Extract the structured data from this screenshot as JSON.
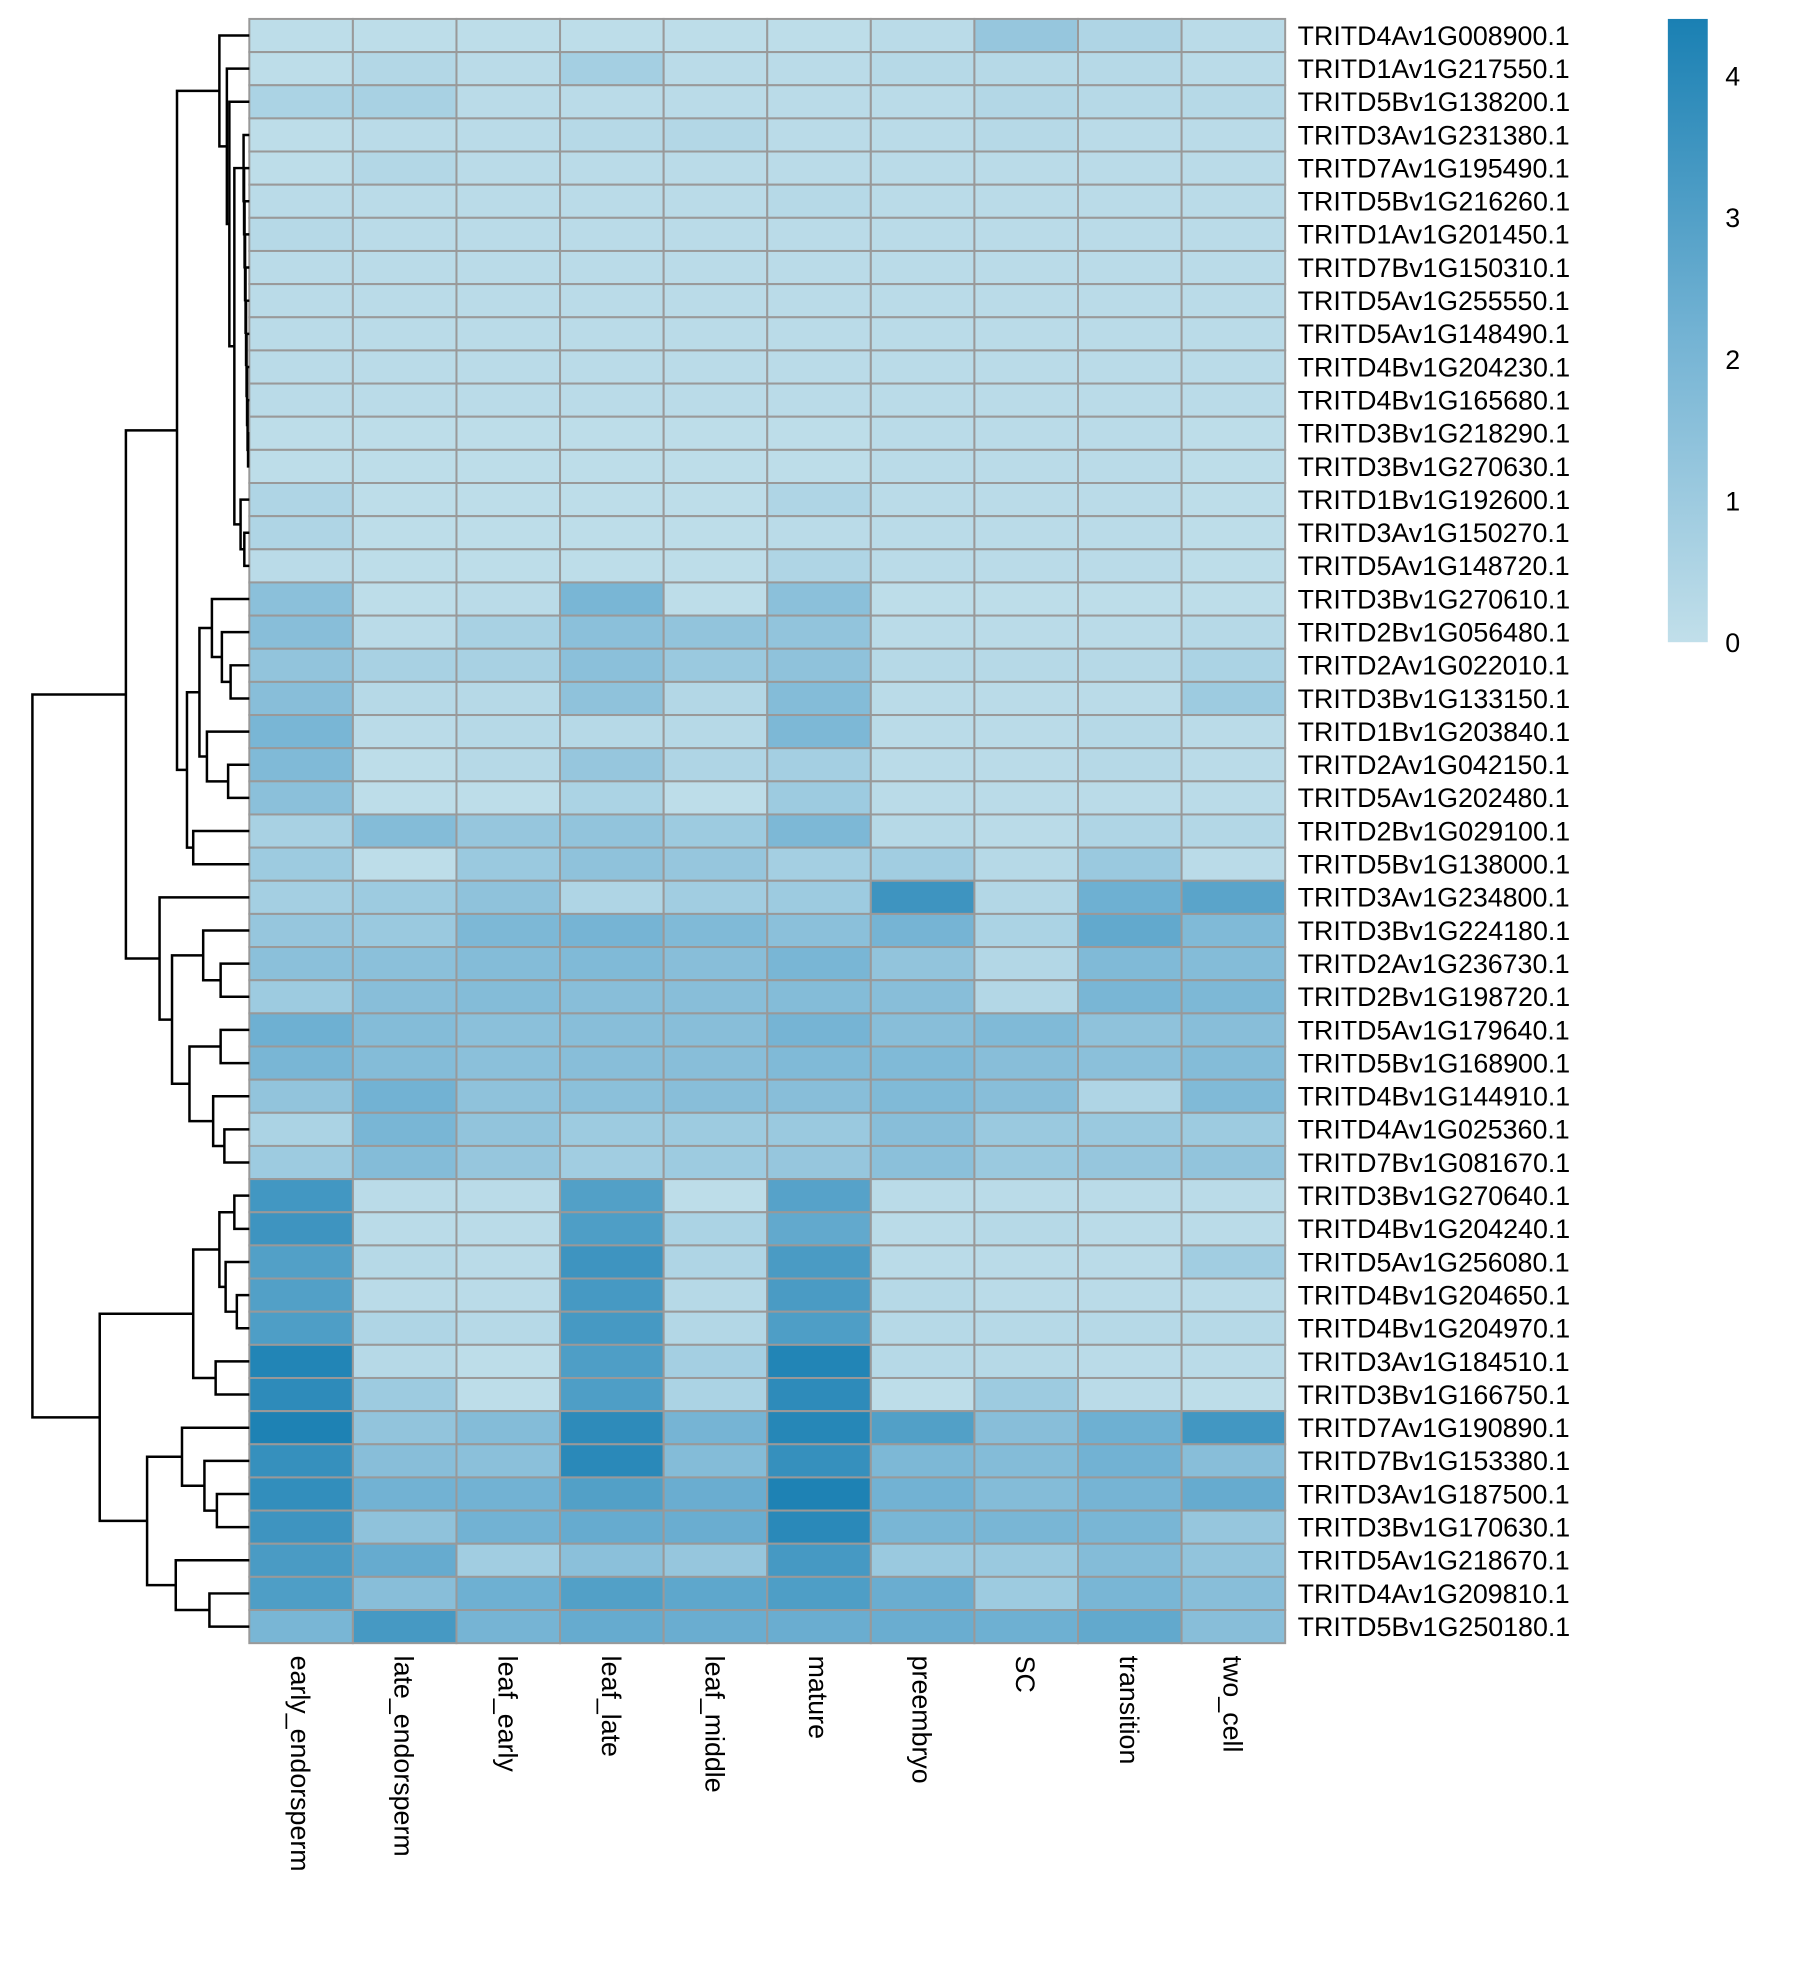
{
  "chart_data": {
    "type": "heatmap",
    "title": "",
    "columns": [
      "early_endorsperm",
      "late_endorsperm",
      "leaf_early",
      "leaf_late",
      "leaf_middle",
      "mature",
      "preembryo",
      "SC",
      "transition",
      "two_cell"
    ],
    "rows": [
      "TRITD4Av1G008900.1",
      "TRITD1Av1G217550.1",
      "TRITD5Bv1G138200.1",
      "TRITD3Av1G231380.1",
      "TRITD7Av1G195490.1",
      "TRITD5Bv1G216260.1",
      "TRITD1Av1G201450.1",
      "TRITD7Bv1G150310.1",
      "TRITD5Av1G255550.1",
      "TRITD5Av1G148490.1",
      "TRITD4Bv1G204230.1",
      "TRITD4Bv1G165680.1",
      "TRITD3Bv1G218290.1",
      "TRITD3Bv1G270630.1",
      "TRITD1Bv1G192600.1",
      "TRITD3Av1G150270.1",
      "TRITD5Av1G148720.1",
      "TRITD3Bv1G270610.1",
      "TRITD2Bv1G056480.1",
      "TRITD2Av1G022010.1",
      "TRITD3Bv1G133150.1",
      "TRITD1Bv1G203840.1",
      "TRITD2Av1G042150.1",
      "TRITD5Av1G202480.1",
      "TRITD2Bv1G029100.1",
      "TRITD5Bv1G138000.1",
      "TRITD3Av1G234800.1",
      "TRITD3Bv1G224180.1",
      "TRITD2Av1G236730.1",
      "TRITD2Bv1G198720.1",
      "TRITD5Av1G179640.1",
      "TRITD5Bv1G168900.1",
      "TRITD4Bv1G144910.1",
      "TRITD4Av1G025360.1",
      "TRITD7Bv1G081670.1",
      "TRITD3Bv1G270640.1",
      "TRITD4Bv1G204240.1",
      "TRITD5Av1G256080.1",
      "TRITD4Bv1G204650.1",
      "TRITD4Bv1G204970.1",
      "TRITD3Av1G184510.1",
      "TRITD3Bv1G166750.1",
      "TRITD7Av1G190890.1",
      "TRITD7Bv1G153380.1",
      "TRITD3Av1G187500.1",
      "TRITD3Bv1G170630.1",
      "TRITD5Av1G218670.1",
      "TRITD4Av1G209810.1",
      "TRITD5Bv1G250180.1"
    ],
    "values": [
      [
        0.1,
        0.1,
        0.1,
        0.1,
        0.1,
        0.1,
        0.2,
        1.2,
        0.5,
        0.2
      ],
      [
        0.1,
        0.4,
        0.2,
        0.8,
        0.2,
        0.2,
        0.3,
        0.3,
        0.3,
        0.2
      ],
      [
        0.6,
        0.7,
        0.2,
        0.2,
        0.2,
        0.2,
        0.2,
        0.4,
        0.3,
        0.3
      ],
      [
        0.1,
        0.2,
        0.2,
        0.3,
        0.4,
        0.2,
        0.2,
        0.3,
        0.2,
        0.2
      ],
      [
        0.1,
        0.4,
        0.2,
        0.2,
        0.2,
        0.2,
        0.2,
        0.2,
        0.2,
        0.2
      ],
      [
        0.2,
        0.2,
        0.2,
        0.2,
        0.2,
        0.3,
        0.2,
        0.2,
        0.2,
        0.2
      ],
      [
        0.3,
        0.2,
        0.2,
        0.2,
        0.2,
        0.2,
        0.2,
        0.2,
        0.2,
        0.2
      ],
      [
        0.2,
        0.2,
        0.2,
        0.2,
        0.2,
        0.2,
        0.2,
        0.2,
        0.2,
        0.2
      ],
      [
        0.2,
        0.2,
        0.2,
        0.2,
        0.2,
        0.2,
        0.2,
        0.2,
        0.2,
        0.2
      ],
      [
        0.2,
        0.2,
        0.2,
        0.2,
        0.2,
        0.2,
        0.2,
        0.2,
        0.2,
        0.2
      ],
      [
        0.2,
        0.2,
        0.2,
        0.2,
        0.2,
        0.2,
        0.2,
        0.2,
        0.2,
        0.2
      ],
      [
        0.2,
        0.2,
        0.2,
        0.2,
        0.2,
        0.2,
        0.2,
        0.2,
        0.2,
        0.2
      ],
      [
        0.1,
        0.1,
        0.1,
        0.1,
        0.1,
        0.1,
        0.2,
        0.2,
        0.2,
        0.1
      ],
      [
        0.1,
        0.1,
        0.1,
        0.1,
        0.1,
        0.1,
        0.2,
        0.2,
        0.2,
        0.1
      ],
      [
        0.5,
        0.1,
        0.1,
        0.1,
        0.1,
        0.5,
        0.2,
        0.2,
        0.2,
        0.1
      ],
      [
        0.5,
        0.1,
        0.1,
        0.1,
        0.1,
        0.2,
        0.2,
        0.2,
        0.2,
        0.1
      ],
      [
        0.2,
        0.1,
        0.1,
        0.1,
        0.1,
        0.5,
        0.2,
        0.2,
        0.2,
        0.1
      ],
      [
        1.5,
        0.1,
        0.2,
        2.0,
        0.1,
        1.5,
        0.1,
        0.1,
        0.1,
        0.1
      ],
      [
        1.6,
        0.2,
        0.7,
        1.5,
        1.3,
        1.3,
        0.2,
        0.2,
        0.2,
        0.3
      ],
      [
        1.3,
        0.7,
        0.7,
        1.5,
        1.1,
        1.4,
        0.3,
        0.3,
        0.3,
        0.6
      ],
      [
        1.6,
        0.3,
        0.3,
        1.4,
        0.4,
        1.7,
        0.2,
        0.2,
        0.2,
        1.0
      ],
      [
        2.0,
        0.2,
        0.3,
        0.3,
        0.3,
        1.9,
        0.2,
        0.2,
        0.3,
        0.2
      ],
      [
        1.8,
        0.1,
        0.3,
        1.2,
        0.5,
        0.8,
        0.2,
        0.2,
        0.3,
        0.2
      ],
      [
        1.5,
        0.1,
        0.1,
        0.6,
        0.1,
        1.0,
        0.2,
        0.2,
        0.2,
        0.2
      ],
      [
        0.7,
        1.7,
        1.2,
        1.3,
        1.0,
        1.9,
        0.3,
        0.2,
        0.5,
        0.4
      ],
      [
        1.0,
        0.1,
        1.1,
        1.4,
        1.2,
        0.8,
        0.9,
        0.3,
        1.1,
        0.2
      ],
      [
        0.8,
        1.0,
        1.4,
        0.5,
        0.9,
        1.0,
        3.5,
        0.4,
        2.3,
        2.8
      ],
      [
        1.2,
        1.1,
        1.9,
        2.1,
        1.8,
        1.5,
        2.1,
        0.6,
        2.6,
        1.8
      ],
      [
        1.5,
        1.5,
        1.7,
        1.8,
        1.6,
        2.0,
        1.3,
        0.4,
        1.8,
        1.7
      ],
      [
        1.0,
        1.6,
        1.7,
        1.6,
        1.6,
        1.7,
        1.6,
        0.4,
        2.0,
        1.9
      ],
      [
        2.3,
        1.7,
        1.5,
        1.6,
        1.6,
        2.1,
        1.6,
        1.8,
        1.4,
        1.6
      ],
      [
        2.0,
        1.7,
        1.5,
        1.6,
        1.6,
        1.8,
        1.8,
        1.6,
        1.5,
        1.7
      ],
      [
        1.3,
        2.2,
        1.4,
        1.5,
        1.6,
        1.6,
        1.8,
        1.6,
        0.5,
        1.8
      ],
      [
        0.6,
        2.0,
        1.3,
        1.0,
        1.0,
        1.1,
        1.6,
        1.1,
        1.1,
        1.0
      ],
      [
        1.0,
        1.7,
        1.2,
        0.9,
        1.0,
        1.2,
        1.5,
        1.1,
        1.2,
        1.3
      ],
      [
        3.4,
        0.2,
        0.2,
        3.0,
        0.1,
        2.9,
        0.2,
        0.2,
        0.2,
        0.2
      ],
      [
        3.5,
        0.2,
        0.2,
        3.1,
        0.6,
        2.6,
        0.2,
        0.3,
        0.2,
        0.2
      ],
      [
        3.0,
        0.3,
        0.2,
        3.5,
        0.5,
        3.2,
        0.2,
        0.2,
        0.2,
        0.9
      ],
      [
        3.0,
        0.2,
        0.2,
        3.3,
        0.3,
        3.2,
        0.3,
        0.2,
        0.2,
        0.2
      ],
      [
        3.1,
        0.5,
        0.3,
        3.3,
        0.4,
        3.1,
        0.3,
        0.3,
        0.3,
        0.3
      ],
      [
        4.2,
        0.3,
        0.1,
        3.1,
        0.8,
        4.2,
        0.3,
        0.3,
        0.2,
        0.2
      ],
      [
        3.9,
        1.0,
        0.1,
        3.1,
        0.6,
        3.9,
        0.1,
        1.0,
        0.2,
        0.1
      ],
      [
        4.3,
        1.3,
        1.7,
        3.9,
        2.1,
        4.1,
        3.0,
        1.6,
        2.3,
        3.4
      ],
      [
        3.7,
        1.6,
        1.5,
        4.0,
        1.7,
        3.7,
        1.9,
        1.7,
        2.2,
        1.6
      ],
      [
        3.8,
        2.2,
        2.2,
        3.0,
        2.4,
        4.3,
        2.2,
        1.7,
        2.1,
        2.5
      ],
      [
        3.5,
        1.4,
        2.2,
        2.5,
        2.4,
        4.0,
        2.0,
        2.0,
        2.0,
        1.2
      ],
      [
        3.2,
        2.5,
        0.9,
        1.5,
        1.2,
        3.3,
        1.1,
        1.1,
        1.7,
        1.3
      ],
      [
        3.1,
        1.6,
        2.3,
        3.0,
        2.7,
        3.1,
        2.4,
        1.0,
        2.0,
        1.6
      ],
      [
        2.0,
        3.3,
        2.1,
        2.5,
        2.4,
        2.4,
        2.4,
        2.3,
        2.6,
        1.6
      ]
    ],
    "legend": {
      "ticks": [
        "0",
        "1",
        "2",
        "3",
        "4"
      ],
      "range": [
        0,
        4.4
      ],
      "placement": "top-right",
      "colors": {
        "low": "#c1dfea",
        "mid": "#72b2d3",
        "high": "#1a80b3"
      }
    },
    "cell_border_color": "#999999",
    "row_dendrogram": true,
    "column_dendrogram": false
  }
}
